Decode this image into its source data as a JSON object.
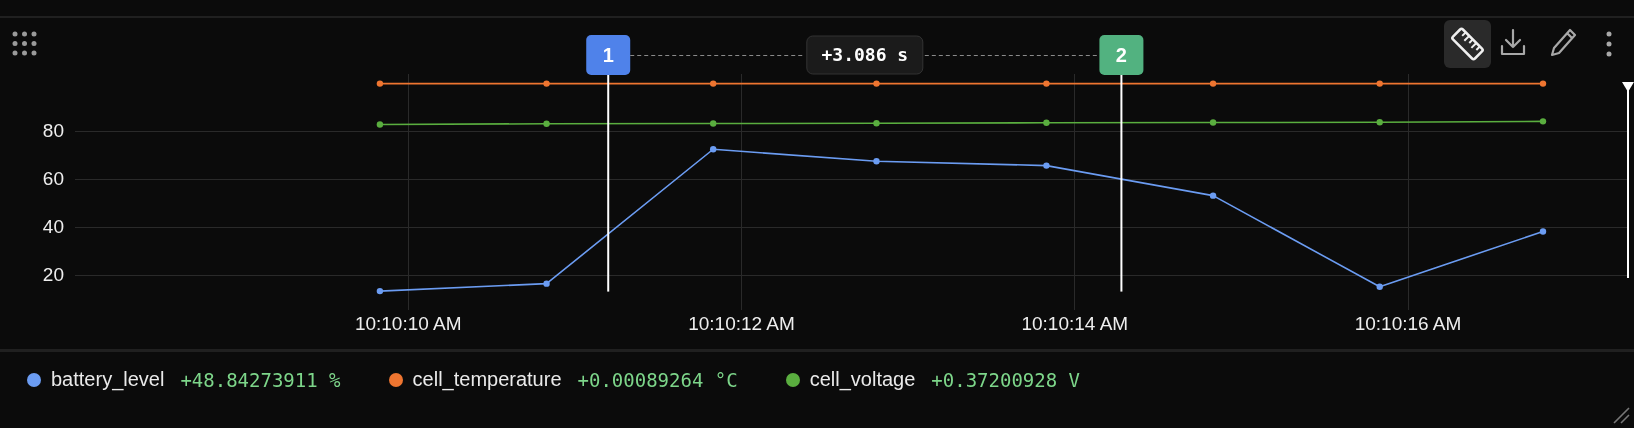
{
  "chart_data": {
    "type": "line",
    "x": [
      10.1693972,
      10.169675,
      10.1699528,
      10.170225,
      10.1705083,
      10.1707861,
      10.1710639,
      10.1713361
    ],
    "series": [
      {
        "name": "battery_level",
        "color": "#6b9cf2",
        "values": [
          13.7,
          16.8,
          72.7,
          67.7,
          65.9,
          53.4,
          15.5,
          38.5
        ]
      },
      {
        "name": "cell_temperature",
        "color": "#ee7530",
        "values": [
          100,
          100,
          100,
          100,
          100,
          100,
          100,
          100
        ]
      },
      {
        "name": "cell_voltage",
        "color": "#5aae3f",
        "values": [
          83,
          83.3,
          83.4,
          83.5,
          83.7,
          83.8,
          83.9,
          84.3
        ]
      }
    ],
    "xlim": [
      10.1688889,
      10.1714778
    ],
    "xticks": [
      {
        "value": 10.1694444,
        "label": "10:10:10 AM"
      },
      {
        "value": 10.17,
        "label": "10:10:12 AM"
      },
      {
        "value": 10.1705556,
        "label": "10:10:14 AM"
      },
      {
        "value": 10.1711111,
        "label": "10:10:16 AM"
      }
    ],
    "ylim": [
      6,
      104
    ],
    "yticks": [
      20,
      40,
      60,
      80
    ],
    "ref_lines": [
      {
        "axis": "x",
        "value": 10.1697778,
        "color": "#ffffff"
      },
      {
        "axis": "x",
        "value": 10.1706333,
        "color": "#ffffff"
      }
    ],
    "annotations": [
      "1",
      "2",
      "+3.086 s",
      "+48.84273911 %",
      "+0.00089264 °C",
      "+0.37200928 V"
    ],
    "grid": true,
    "legend": "bottom",
    "marker": "circle",
    "line_style": "solid"
  }
}
